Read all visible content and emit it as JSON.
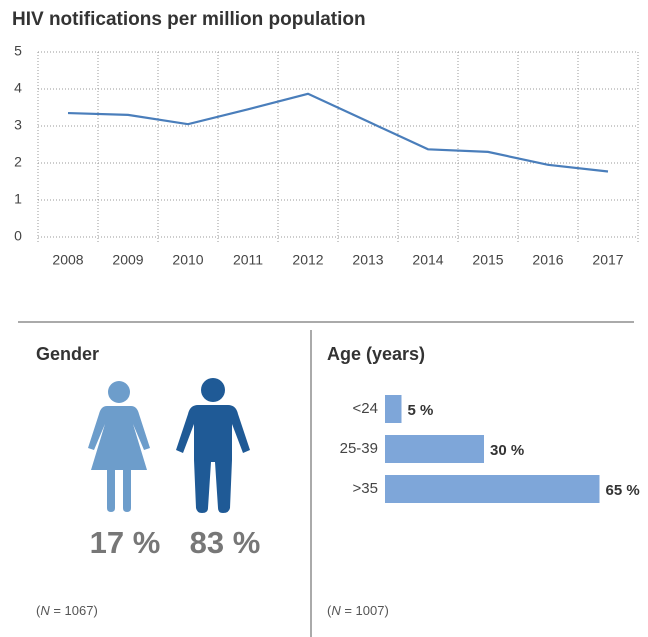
{
  "chart_data": [
    {
      "type": "line",
      "title": "HIV notifications per million population",
      "categories": [
        "2008",
        "2009",
        "2010",
        "2011",
        "2012",
        "2013",
        "2014",
        "2015",
        "2016",
        "2017"
      ],
      "values": [
        3.35,
        3.3,
        3.05,
        3.45,
        3.87,
        3.12,
        2.37,
        2.3,
        1.95,
        1.77
      ],
      "color": "#4a7ebb",
      "ylim": [
        0,
        5
      ],
      "yticks": [
        0,
        1,
        2,
        3,
        4,
        5
      ],
      "grid": true
    },
    {
      "type": "pictogram",
      "title": "Gender",
      "categories": [
        null,
        null
      ],
      "values": [
        17,
        83
      ],
      "value_labels": [
        "17 %",
        "83 %"
      ],
      "colors": [
        "#6d9dcb",
        "#1f5a96"
      ],
      "note": [
        "(",
        "N",
        " = 1067)"
      ]
    },
    {
      "type": "hbar",
      "title": "Age (years)",
      "categories": [
        "<24",
        "25-39",
        ">35"
      ],
      "values": [
        5,
        30,
        65
      ],
      "value_labels": [
        "5 %",
        "30 %",
        "65 %"
      ],
      "color": "#7ea6d9",
      "note": [
        "(",
        "N",
        " = 1007)"
      ]
    }
  ]
}
